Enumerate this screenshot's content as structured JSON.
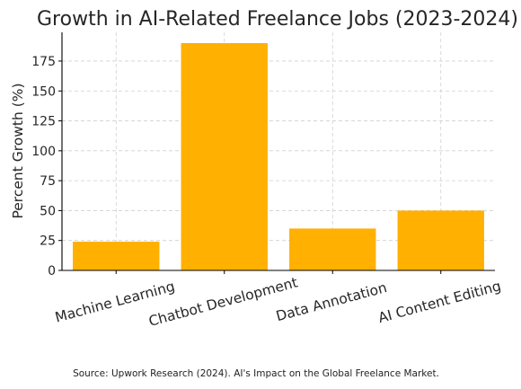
{
  "chart_data": {
    "type": "bar",
    "title": "Growth in AI-Related Freelance Jobs (2023-2024)",
    "xlabel": "",
    "ylabel": "Percent Growth (%)",
    "categories": [
      "Machine Learning",
      "Chatbot Development",
      "Data Annotation",
      "AI Content Editing"
    ],
    "values": [
      24,
      190,
      35,
      50
    ],
    "ylim": [
      0,
      199
    ],
    "yticks": [
      0,
      25,
      50,
      75,
      100,
      125,
      150,
      175
    ],
    "bar_color": "#FFB000",
    "grid": true,
    "x_tick_rotation_deg": -15
  },
  "footer": {
    "source": "Source: Upwork Research (2024). AI's Impact on the Global Freelance Market."
  }
}
